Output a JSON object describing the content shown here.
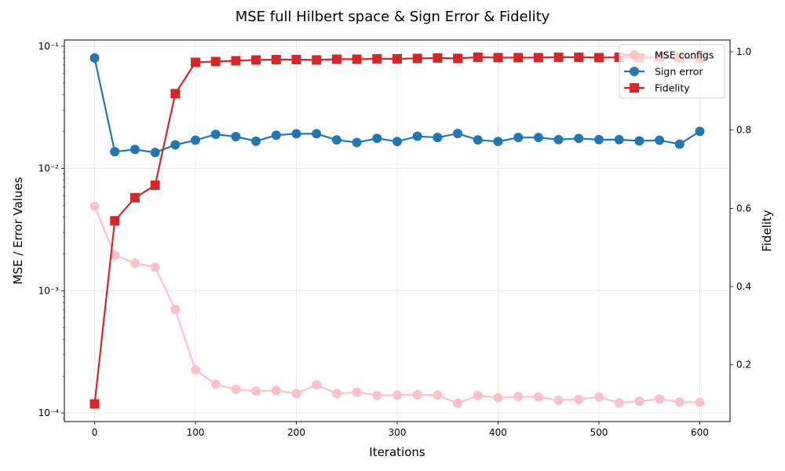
{
  "chart_data": {
    "type": "line",
    "title": "MSE full Hilbert space & Sign Error & Fidelity",
    "xlabel": "Iterations",
    "ylabel_left": "MSE / Error Values",
    "ylabel_right": "Fidelity",
    "xlim": [
      -30,
      630
    ],
    "ylim_left_log10": [
      -4.07,
      -0.95
    ],
    "ylim_right": [
      0.055,
      1.03
    ],
    "x_ticks": [
      0,
      100,
      200,
      300,
      400,
      500,
      600
    ],
    "x_tick_labels": [
      "0",
      "100",
      "200",
      "300",
      "400",
      "500",
      "600"
    ],
    "y_left_ticks": [
      0.0001,
      0.001,
      0.01,
      0.1
    ],
    "y_left_tick_labels": [
      "10⁻⁴",
      "10⁻³",
      "10⁻²",
      "10⁻¹"
    ],
    "y_right_ticks": [
      0.2,
      0.4,
      0.6,
      0.8,
      1.0
    ],
    "y_right_tick_labels": [
      "0.2",
      "0.4",
      "0.6",
      "0.8",
      "1.0"
    ],
    "grid": true,
    "legend_position": "top-right",
    "x": [
      0,
      20,
      40,
      60,
      80,
      100,
      120,
      140,
      160,
      180,
      200,
      220,
      240,
      260,
      280,
      300,
      320,
      340,
      360,
      380,
      400,
      420,
      440,
      460,
      480,
      500,
      520,
      540,
      560,
      580,
      600
    ],
    "series": [
      {
        "name": "MSE configs",
        "axis": "left",
        "color": "#ffc0cb",
        "marker": "circle",
        "values": [
          0.0049,
          0.00195,
          0.00168,
          0.00156,
          0.0007,
          0.000225,
          0.000172,
          0.000156,
          0.000151,
          0.000153,
          0.000144,
          0.00017,
          0.000144,
          0.000148,
          0.000139,
          0.00014,
          0.000141,
          0.00014,
          0.00012,
          0.000139,
          0.000133,
          0.000136,
          0.000135,
          0.000127,
          0.000129,
          0.000135,
          0.000121,
          0.000125,
          0.00013,
          0.000123,
          0.000122
        ]
      },
      {
        "name": "Sign error",
        "axis": "left",
        "color": "#1f77b4",
        "marker": "circle",
        "values": [
          0.08,
          0.0137,
          0.0143,
          0.0135,
          0.0156,
          0.017,
          0.019,
          0.0182,
          0.0167,
          0.0187,
          0.0192,
          0.0192,
          0.0171,
          0.0163,
          0.0176,
          0.0166,
          0.0183,
          0.0179,
          0.0193,
          0.0171,
          0.0166,
          0.0179,
          0.0179,
          0.0172,
          0.0176,
          0.0172,
          0.0172,
          0.0168,
          0.017,
          0.0158,
          0.0201
        ]
      },
      {
        "name": "Fidelity",
        "axis": "right",
        "color": "#d62728",
        "marker": "square",
        "values": [
          0.1,
          0.568,
          0.627,
          0.659,
          0.893,
          0.973,
          0.975,
          0.977,
          0.979,
          0.98,
          0.98,
          0.979,
          0.981,
          0.981,
          0.982,
          0.982,
          0.983,
          0.984,
          0.983,
          0.986,
          0.985,
          0.985,
          0.985,
          0.986,
          0.986,
          0.985,
          0.986,
          0.985,
          0.986,
          0.985,
          0.983
        ]
      }
    ]
  }
}
